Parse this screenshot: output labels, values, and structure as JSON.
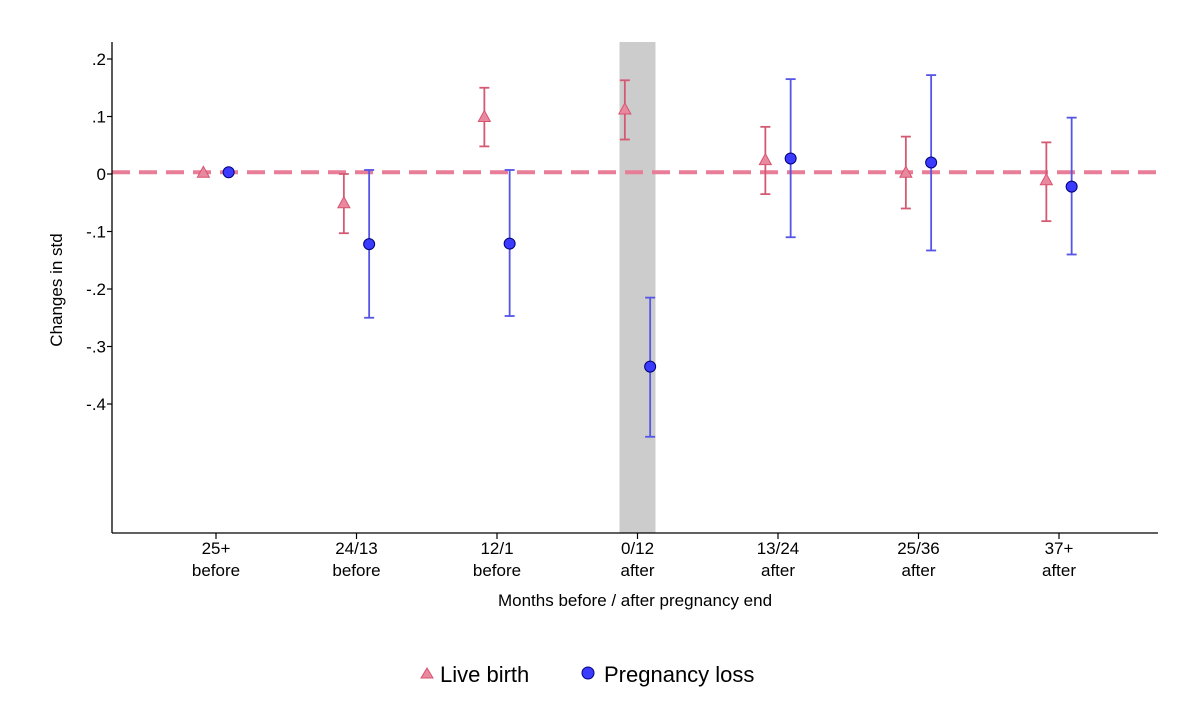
{
  "chart_data": {
    "type": "scatter",
    "title": "",
    "xlabel": "Months before / after pregnancy end",
    "ylabel": "Changes in std",
    "ylim": [
      -0.62,
      0.23
    ],
    "yticks": [
      {
        "value": 0.2,
        "label": ".2"
      },
      {
        "value": 0.1,
        "label": ".1"
      },
      {
        "value": 0,
        "label": "0"
      },
      {
        "value": -0.1,
        "label": "-.1"
      },
      {
        "value": -0.2,
        "label": "-.2"
      },
      {
        "value": -0.3,
        "label": "-.3"
      },
      {
        "value": -0.4,
        "label": "-.4"
      }
    ],
    "categories": [
      {
        "line1": "25+",
        "line2": "before"
      },
      {
        "line1": "24/13",
        "line2": "before"
      },
      {
        "line1": "12/1",
        "line2": "before"
      },
      {
        "line1": "0/12",
        "line2": "after"
      },
      {
        "line1": "13/24",
        "line2": "after"
      },
      {
        "line1": "25/36",
        "line2": "after"
      },
      {
        "line1": "37+",
        "line2": "after"
      }
    ],
    "highlight_category_index": 3,
    "reference_line": 0.003,
    "series": [
      {
        "name": "Live birth",
        "marker": "triangle",
        "color": "#d9536f",
        "offset": -0.09,
        "points": [
          {
            "y": 0.003,
            "lo": null,
            "hi": null
          },
          {
            "y": -0.05,
            "lo": -0.103,
            "hi": 0.0
          },
          {
            "y": 0.1,
            "lo": 0.048,
            "hi": 0.15
          },
          {
            "y": 0.113,
            "lo": 0.06,
            "hi": 0.163
          },
          {
            "y": 0.025,
            "lo": -0.035,
            "hi": 0.082
          },
          {
            "y": 0.003,
            "lo": -0.06,
            "hi": 0.065
          },
          {
            "y": -0.01,
            "lo": -0.082,
            "hi": 0.055
          }
        ]
      },
      {
        "name": "Pregnancy loss",
        "marker": "circle",
        "color": "#2b2bff",
        "offset": 0.09,
        "points": [
          {
            "y": 0.003,
            "lo": null,
            "hi": null
          },
          {
            "y": -0.122,
            "lo": -0.25,
            "hi": 0.007
          },
          {
            "y": -0.121,
            "lo": -0.247,
            "hi": 0.007
          },
          {
            "y": -0.335,
            "lo": -0.457,
            "hi": -0.215
          },
          {
            "y": 0.027,
            "lo": -0.11,
            "hi": 0.165
          },
          {
            "y": 0.02,
            "lo": -0.133,
            "hi": 0.172
          },
          {
            "y": -0.022,
            "lo": -0.14,
            "hi": 0.098
          }
        ]
      }
    ],
    "legend": {
      "position": "bottom-center"
    }
  }
}
